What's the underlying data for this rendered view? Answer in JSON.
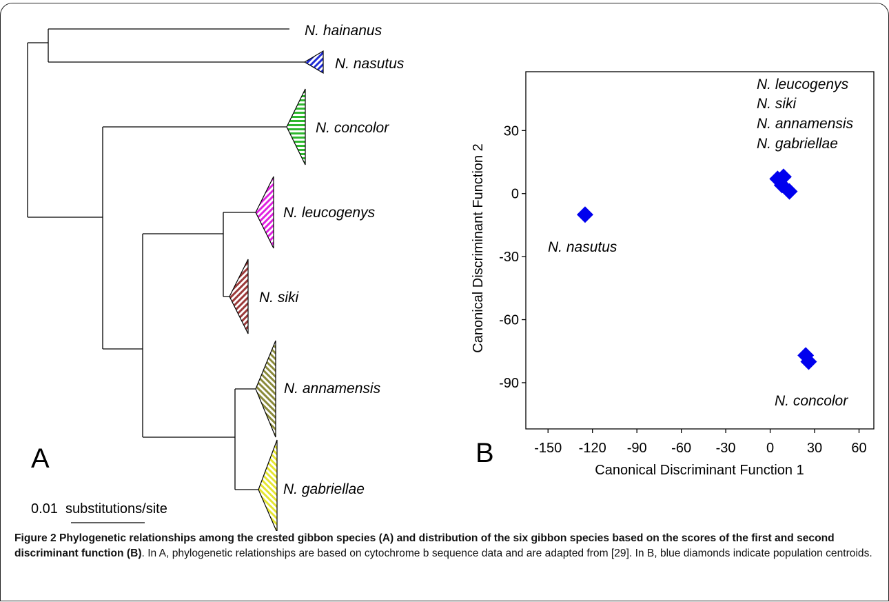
{
  "panel_a": {
    "label": "A",
    "scale_bar": {
      "value": "0.01",
      "unit": "substitutions/site"
    },
    "taxa": [
      {
        "name": "N. hainanus",
        "fill": "none"
      },
      {
        "name": "N. nasutus",
        "fill": "#1f2bd6"
      },
      {
        "name": "N. concolor",
        "fill": "#2eb82e"
      },
      {
        "name": "N. leucogenys",
        "fill": "#e020e0"
      },
      {
        "name": "N. siki",
        "fill": "#9b3a3a"
      },
      {
        "name": "N. annamensis",
        "fill": "#8a8a3a"
      },
      {
        "name": "N. gabriellae",
        "fill": "#e6e630"
      }
    ]
  },
  "panel_b": {
    "label": "B",
    "group_labels": {
      "top_list": [
        "N. leucogenys",
        "N. siki",
        "N. annamensis",
        "N. gabriellae"
      ],
      "nasutus": "N. nasutus",
      "concolor": "N. concolor"
    },
    "marker_color": "#0000ee"
  },
  "chart_data": {
    "type": "scatter",
    "xlabel": "Canonical Discriminant Function 1",
    "ylabel": "Canonical Discriminant Function 2",
    "xlim": [
      -165,
      70
    ],
    "ylim": [
      -112,
      58
    ],
    "xticks": [
      -150,
      -120,
      -90,
      -60,
      -30,
      0,
      30,
      60
    ],
    "yticks": [
      30,
      0,
      -30,
      -60,
      -90
    ],
    "grid": false,
    "points": [
      {
        "x": -125,
        "y": -10
      },
      {
        "x": 5,
        "y": 7
      },
      {
        "x": 9,
        "y": 8
      },
      {
        "x": 8,
        "y": 4
      },
      {
        "x": 13,
        "y": 1
      },
      {
        "x": 24,
        "y": -77
      },
      {
        "x": 26,
        "y": -80
      }
    ]
  },
  "caption": {
    "figure_label": "Figure 2",
    "title": "Phylogenetic relationships among the crested gibbon species (A) and distribution of the six gibbon species based on the scores of the first and second discriminant function (B)",
    "body": ". In A, phylogenetic relationships are based on cytochrome b sequence data and are adapted from [29]. In B, blue diamonds indicate population centroids."
  }
}
